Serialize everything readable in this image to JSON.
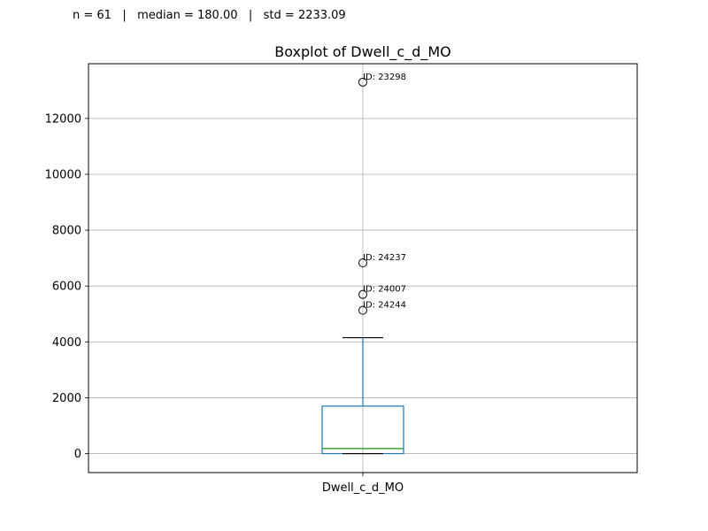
{
  "stats_text": "n = 61   |   median = 180.00   |   std = 2233.09",
  "chart_data": {
    "type": "boxplot",
    "title": "Boxplot of Dwell_c_d_MO",
    "xlabel": "",
    "ylabel": "",
    "categories": [
      "Dwell_c_d_MO"
    ],
    "ylim": [
      -680,
      13960
    ],
    "yticks": [
      0,
      2000,
      4000,
      6000,
      8000,
      10000,
      12000
    ],
    "grid": true,
    "boxes": [
      {
        "name": "Dwell_c_d_MO",
        "whisker_low": 0,
        "q1": 0,
        "median": 180,
        "q3": 1700,
        "whisker_high": 4150,
        "outliers": [
          {
            "value": 13300,
            "label": "ID: 23298"
          },
          {
            "value": 6830,
            "label": "ID: 24237"
          },
          {
            "value": 5700,
            "label": "ID: 24007"
          },
          {
            "value": 5130,
            "label": "ID: 24244"
          }
        ]
      }
    ],
    "colors": {
      "box": "#1f77b4",
      "median": "#2ca02c",
      "cap": "#000000",
      "grid": "#b0b0b0",
      "outlier_edge": "#000000"
    }
  }
}
